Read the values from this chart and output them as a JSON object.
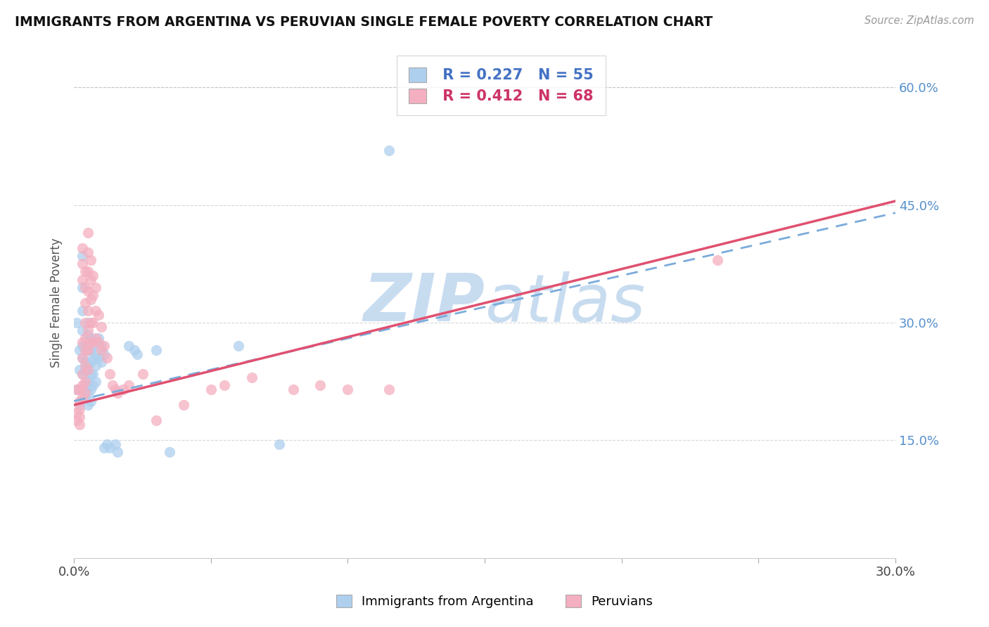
{
  "title": "IMMIGRANTS FROM ARGENTINA VS PERUVIAN SINGLE FEMALE POVERTY CORRELATION CHART",
  "source": "Source: ZipAtlas.com",
  "ylabel": "Single Female Poverty",
  "xmin": 0.0,
  "xmax": 0.3,
  "ymin": 0.0,
  "ymax": 0.65,
  "ytick_positions": [
    0.15,
    0.3,
    0.45,
    0.6
  ],
  "ytick_labels": [
    "15.0%",
    "30.0%",
    "45.0%",
    "60.0%"
  ],
  "blue_color": "#aed0ee",
  "pink_color": "#f4afc0",
  "blue_line_color": "#4472c4",
  "pink_line_color": "#e05070",
  "dashed_line_color": "#7aabdb",
  "grid_color": "#d8d8d8",
  "top_dashed_color": "#c8c8c8",
  "watermark_color": "#c8dcf0",
  "argentina_scatter": [
    [
      0.001,
      0.215
    ],
    [
      0.001,
      0.3
    ],
    [
      0.002,
      0.265
    ],
    [
      0.002,
      0.24
    ],
    [
      0.002,
      0.195
    ],
    [
      0.003,
      0.385
    ],
    [
      0.003,
      0.345
    ],
    [
      0.003,
      0.315
    ],
    [
      0.003,
      0.29
    ],
    [
      0.003,
      0.27
    ],
    [
      0.003,
      0.255
    ],
    [
      0.003,
      0.235
    ],
    [
      0.004,
      0.27
    ],
    [
      0.004,
      0.25
    ],
    [
      0.004,
      0.24
    ],
    [
      0.004,
      0.22
    ],
    [
      0.004,
      0.205
    ],
    [
      0.005,
      0.3
    ],
    [
      0.005,
      0.285
    ],
    [
      0.005,
      0.265
    ],
    [
      0.005,
      0.245
    ],
    [
      0.005,
      0.225
    ],
    [
      0.005,
      0.21
    ],
    [
      0.005,
      0.195
    ],
    [
      0.006,
      0.28
    ],
    [
      0.006,
      0.265
    ],
    [
      0.006,
      0.25
    ],
    [
      0.006,
      0.235
    ],
    [
      0.006,
      0.215
    ],
    [
      0.006,
      0.2
    ],
    [
      0.007,
      0.27
    ],
    [
      0.007,
      0.255
    ],
    [
      0.007,
      0.235
    ],
    [
      0.007,
      0.22
    ],
    [
      0.008,
      0.26
    ],
    [
      0.008,
      0.245
    ],
    [
      0.008,
      0.225
    ],
    [
      0.009,
      0.28
    ],
    [
      0.009,
      0.255
    ],
    [
      0.01,
      0.27
    ],
    [
      0.01,
      0.25
    ],
    [
      0.011,
      0.26
    ],
    [
      0.011,
      0.14
    ],
    [
      0.012,
      0.145
    ],
    [
      0.013,
      0.14
    ],
    [
      0.015,
      0.145
    ],
    [
      0.016,
      0.135
    ],
    [
      0.02,
      0.27
    ],
    [
      0.022,
      0.265
    ],
    [
      0.023,
      0.26
    ],
    [
      0.03,
      0.265
    ],
    [
      0.035,
      0.135
    ],
    [
      0.06,
      0.27
    ],
    [
      0.075,
      0.145
    ],
    [
      0.115,
      0.52
    ]
  ],
  "peru_scatter": [
    [
      0.001,
      0.215
    ],
    [
      0.001,
      0.185
    ],
    [
      0.001,
      0.175
    ],
    [
      0.002,
      0.215
    ],
    [
      0.002,
      0.2
    ],
    [
      0.002,
      0.19
    ],
    [
      0.002,
      0.18
    ],
    [
      0.002,
      0.17
    ],
    [
      0.003,
      0.395
    ],
    [
      0.003,
      0.375
    ],
    [
      0.003,
      0.355
    ],
    [
      0.003,
      0.275
    ],
    [
      0.003,
      0.255
    ],
    [
      0.003,
      0.235
    ],
    [
      0.003,
      0.22
    ],
    [
      0.003,
      0.205
    ],
    [
      0.004,
      0.365
    ],
    [
      0.004,
      0.345
    ],
    [
      0.004,
      0.325
    ],
    [
      0.004,
      0.3
    ],
    [
      0.004,
      0.28
    ],
    [
      0.004,
      0.265
    ],
    [
      0.004,
      0.245
    ],
    [
      0.004,
      0.225
    ],
    [
      0.004,
      0.21
    ],
    [
      0.005,
      0.415
    ],
    [
      0.005,
      0.39
    ],
    [
      0.005,
      0.365
    ],
    [
      0.005,
      0.34
    ],
    [
      0.005,
      0.315
    ],
    [
      0.005,
      0.29
    ],
    [
      0.005,
      0.265
    ],
    [
      0.005,
      0.24
    ],
    [
      0.006,
      0.38
    ],
    [
      0.006,
      0.355
    ],
    [
      0.006,
      0.33
    ],
    [
      0.006,
      0.3
    ],
    [
      0.006,
      0.275
    ],
    [
      0.007,
      0.36
    ],
    [
      0.007,
      0.335
    ],
    [
      0.007,
      0.3
    ],
    [
      0.007,
      0.275
    ],
    [
      0.008,
      0.345
    ],
    [
      0.008,
      0.315
    ],
    [
      0.008,
      0.28
    ],
    [
      0.009,
      0.31
    ],
    [
      0.009,
      0.275
    ],
    [
      0.01,
      0.295
    ],
    [
      0.01,
      0.265
    ],
    [
      0.011,
      0.27
    ],
    [
      0.012,
      0.255
    ],
    [
      0.013,
      0.235
    ],
    [
      0.014,
      0.22
    ],
    [
      0.015,
      0.215
    ],
    [
      0.016,
      0.21
    ],
    [
      0.018,
      0.215
    ],
    [
      0.02,
      0.22
    ],
    [
      0.025,
      0.235
    ],
    [
      0.03,
      0.175
    ],
    [
      0.04,
      0.195
    ],
    [
      0.05,
      0.215
    ],
    [
      0.055,
      0.22
    ],
    [
      0.065,
      0.23
    ],
    [
      0.08,
      0.215
    ],
    [
      0.09,
      0.22
    ],
    [
      0.1,
      0.215
    ],
    [
      0.115,
      0.215
    ],
    [
      0.235,
      0.38
    ]
  ]
}
